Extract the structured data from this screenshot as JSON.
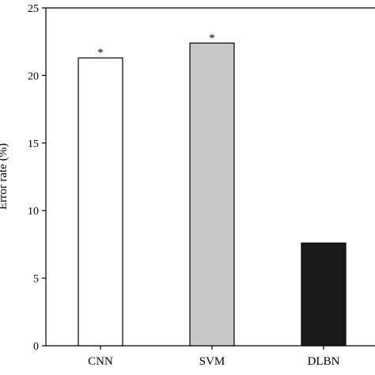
{
  "chart_data": {
    "type": "bar",
    "categories": [
      "CNN",
      "SVM",
      "DLBN"
    ],
    "values": [
      21.3,
      22.4,
      7.6
    ],
    "bar_colors": [
      "#ffffff",
      "#c8c8c8",
      "#1a1a1a"
    ],
    "annotations": [
      "*",
      "*",
      ""
    ],
    "ylabel": "Error rate (%)",
    "ylim": [
      0,
      25
    ],
    "yticks": [
      0,
      5,
      10,
      15,
      20,
      25
    ],
    "grid": false
  }
}
